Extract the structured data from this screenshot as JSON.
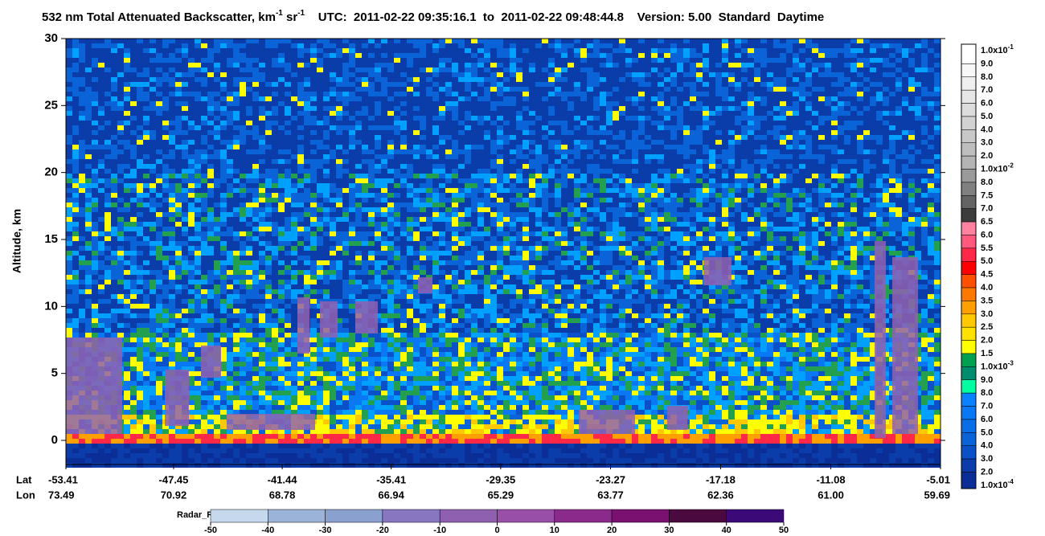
{
  "chart_data": {
    "type": "heatmap",
    "title": [
      "532 nm Total Attenuated Backscatter, km",
      "-1",
      " sr",
      "-1",
      "    UTC:  2011-02-22 09:35:16.1  to  2011-02-22 09:48:44.8    Version: 5.00  Standard  Daytime"
    ],
    "y_label": "Altitude, km",
    "ylim": [
      -1.8,
      30
    ],
    "yticks": [
      0,
      5,
      10,
      15,
      20,
      25,
      30
    ],
    "xlim": [
      -53.41,
      -5.01
    ],
    "x_row_labels": [
      "Lat",
      "Lon"
    ],
    "xticks": [
      -53.41,
      -47.45,
      -41.44,
      -35.41,
      -29.35,
      -23.27,
      -17.18,
      -11.08,
      -5.01
    ],
    "lon_labels": [
      73.49,
      70.92,
      68.78,
      66.94,
      65.29,
      63.77,
      62.36,
      {
        "value": 61,
        "label": "61.00"
      },
      59.69
    ],
    "colorbar": {
      "labels": [
        [
          "1.0x10",
          "-1"
        ],
        [
          "9.0"
        ],
        [
          "8.0"
        ],
        [
          "7.0"
        ],
        [
          "6.0"
        ],
        [
          "5.0"
        ],
        [
          "4.0"
        ],
        [
          "3.0"
        ],
        [
          "2.0"
        ],
        [
          "1.0x10",
          "-2"
        ],
        [
          "8.0"
        ],
        [
          "7.5"
        ],
        [
          "7.0"
        ],
        [
          "6.5"
        ],
        [
          "6.0"
        ],
        [
          "5.5"
        ],
        [
          "5.0"
        ],
        [
          "4.5"
        ],
        [
          "4.0"
        ],
        [
          "3.5"
        ],
        [
          "3.0"
        ],
        [
          "2.5"
        ],
        [
          "2.0"
        ],
        [
          "1.5"
        ],
        [
          "1.0x10",
          "-3"
        ],
        [
          "9.0"
        ],
        [
          "8.0"
        ],
        [
          "7.0"
        ],
        [
          "6.0"
        ],
        [
          "5.0"
        ],
        [
          "4.0"
        ],
        [
          "3.0"
        ],
        [
          "2.0"
        ],
        [
          "1.0x10",
          "-4"
        ]
      ],
      "colors": [
        "#ffffff",
        "#f7f7f7",
        "#efefef",
        "#e6e6e6",
        "#dcdcdc",
        "#d2d2d2",
        "#c8c8c8",
        "#bebebe",
        "#b4b4b4",
        "#9a9a9a",
        "#808080",
        "#646464",
        "#3c3c3c",
        "#ff82a0",
        "#ff5a7d",
        "#ff2846",
        "#ff0000",
        "#ff5000",
        "#ff7800",
        "#ffa000",
        "#ffc800",
        "#ffe100",
        "#ffff00",
        "#00a050",
        "#008c6e",
        "#00ffa0",
        "#0a82ff",
        "#0a78f5",
        "#0a6ee6",
        "#0a64d7",
        "#0a50c8",
        "#0a3caa",
        "#0a2d96"
      ]
    },
    "radar": {
      "label": "Radar_Reflectivity",
      "ticks": [
        -50,
        -40,
        -30,
        -20,
        -10,
        0,
        10,
        20,
        30,
        40,
        50
      ],
      "colors": [
        "#c6d8ec",
        "#9bb3d6",
        "#8aa0cf",
        "#8876c0",
        "#9060b0",
        "#984fa8",
        "#8a2a8a",
        "#7a1070",
        "#4a0a40",
        "#3c0a78"
      ]
    }
  }
}
